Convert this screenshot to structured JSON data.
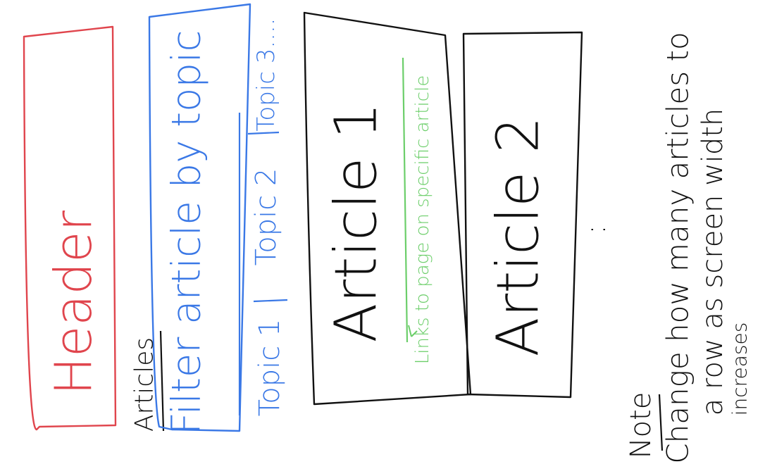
{
  "header": {
    "label": "Header"
  },
  "articles_label": "Articles",
  "filter": {
    "title": "Filter article by topic",
    "topics": [
      "Topic 1",
      "Topic 2",
      "Topic 3...."
    ]
  },
  "articles": [
    {
      "label": "Article 1",
      "link_note": "Links to page on specific article"
    },
    {
      "label": "Article 2"
    }
  ],
  "more": ":",
  "note": {
    "title": "Note",
    "lines": [
      "Change how many articles to",
      "a row as screen width",
      "increases"
    ]
  },
  "colors": {
    "header": "#e0454d",
    "filter": "#3a78e6",
    "link": "#6cce6a",
    "ink": "#111111"
  }
}
